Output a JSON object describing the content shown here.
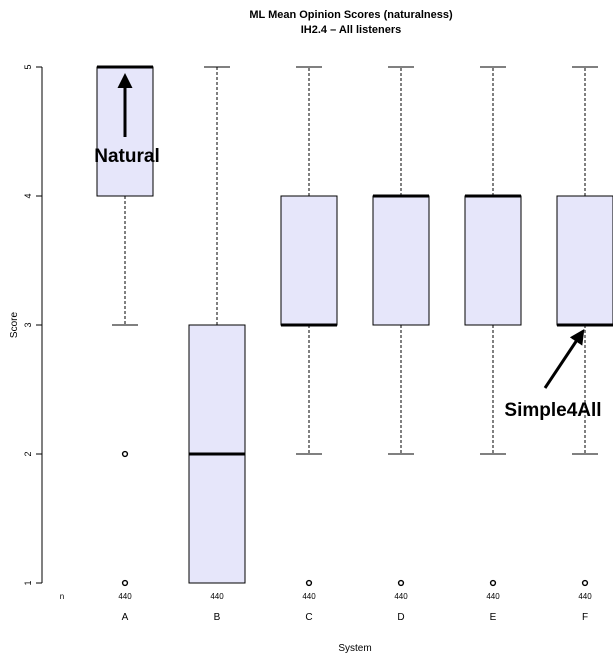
{
  "chart_data": {
    "type": "boxplot",
    "title": "ML Mean Opinion Scores (naturalness)",
    "subtitle": "IH2.4 – All listeners",
    "xlabel": "System",
    "ylabel": "Score",
    "ylim": [
      1,
      5
    ],
    "yticks": [
      "1",
      "2",
      "3",
      "4",
      "5"
    ],
    "n_label": "n",
    "categories": [
      "A",
      "B",
      "C",
      "D",
      "E",
      "F"
    ],
    "counts": [
      "440",
      "440",
      "440",
      "440",
      "440",
      "440"
    ],
    "boxes": [
      {
        "system": "A",
        "whisker_low": 3,
        "q1": 4,
        "median": 5,
        "q3": 5,
        "whisker_high": 5,
        "outliers": [
          1,
          2
        ]
      },
      {
        "system": "B",
        "whisker_low": 1,
        "q1": 1,
        "median": 2,
        "q3": 3,
        "whisker_high": 5,
        "outliers": []
      },
      {
        "system": "C",
        "whisker_low": 2,
        "q1": 3,
        "median": 3,
        "q3": 4,
        "whisker_high": 5,
        "outliers": [
          1
        ]
      },
      {
        "system": "D",
        "whisker_low": 2,
        "q1": 3,
        "median": 4,
        "q3": 4,
        "whisker_high": 5,
        "outliers": [
          1
        ]
      },
      {
        "system": "E",
        "whisker_low": 2,
        "q1": 3,
        "median": 4,
        "q3": 4,
        "whisker_high": 5,
        "outliers": [
          1
        ]
      },
      {
        "system": "F",
        "whisker_low": 2,
        "q1": 3,
        "median": 3,
        "q3": 4,
        "whisker_high": 5,
        "outliers": [
          1
        ]
      }
    ],
    "annotations": [
      {
        "text": "Natural",
        "target_system": "A",
        "target_score": 5
      },
      {
        "text": "Simple4All",
        "target_system": "F",
        "target_score": 3
      }
    ],
    "colors": {
      "box_fill": "#e6e6fa",
      "stroke": "#000000"
    }
  }
}
